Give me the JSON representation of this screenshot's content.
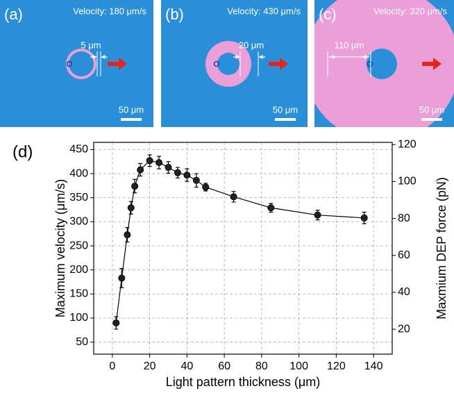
{
  "panels": [
    {
      "label": "(a)",
      "velocity": "Velocity: 180 μm/s",
      "width_label": "5 μm",
      "scale_label": "50 μm"
    },
    {
      "label": "(b)",
      "velocity": "Velocity: 430 μm/s",
      "width_label": "20 μm",
      "scale_label": "50 μm"
    },
    {
      "label": "(c)",
      "velocity": "Velocity: 320 μm/s",
      "width_label": "110 μm",
      "scale_label": "50 μm"
    }
  ],
  "chart_data": {
    "type": "line",
    "label": "(d)",
    "xlabel": "Light pattern thickness (μm)",
    "ylabel": "Maximum velocity (μm/s)",
    "y2label": "Maxmium DEP force (pN)",
    "x": [
      2,
      5,
      8,
      10,
      12,
      15,
      20,
      25,
      30,
      35,
      40,
      45,
      50,
      65,
      85,
      110,
      135
    ],
    "values": [
      90,
      183,
      273,
      329,
      374,
      408,
      427,
      423,
      413,
      402,
      397,
      386,
      372,
      352,
      329,
      314,
      308
    ],
    "errors": [
      13,
      20,
      15,
      13,
      14,
      13,
      12,
      13,
      12,
      11,
      13,
      14,
      8,
      11,
      9,
      10,
      12
    ],
    "color": "#000000",
    "xlim": [
      -10,
      150
    ],
    "xticks": [
      0,
      20,
      40,
      60,
      80,
      100,
      120,
      140
    ],
    "ylim": [
      25,
      465
    ],
    "yticks": [
      50,
      100,
      150,
      200,
      250,
      300,
      350,
      400,
      450
    ],
    "y2lim": [
      6.5,
      121.2
    ],
    "y2ticks": [
      20,
      40,
      60,
      80,
      100,
      120
    ],
    "grid": true
  }
}
